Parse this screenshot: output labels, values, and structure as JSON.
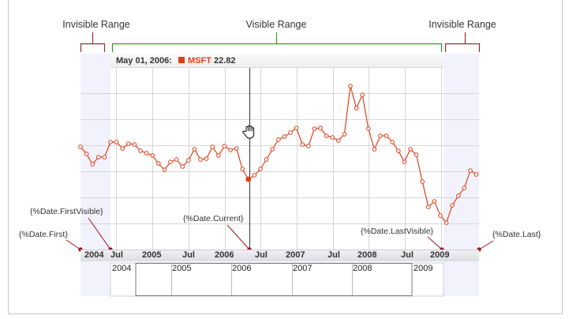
{
  "ranges": {
    "left_invisible": "Invisible Range",
    "visible": "Visible Range",
    "right_invisible": "Invisible Range"
  },
  "tooltip": {
    "date": "May 01, 2006:",
    "series": "MSFT",
    "value": "22.82"
  },
  "axis_labels": [
    "2004",
    "Jul",
    "2005",
    "Jul",
    "2006",
    "Jul",
    "2007",
    "Jul",
    "2008",
    "Jul",
    "2009"
  ],
  "navigator_labels": [
    "2004",
    "2005",
    "2006",
    "2007",
    "2008",
    "2009"
  ],
  "annotations": {
    "first": "{%Date.First}",
    "first_visible": "{%Date.FirstVisible}",
    "current": "{%Date.Current}",
    "last_visible": "{%Date.LastVisible}",
    "last": "{%Date.Last}"
  },
  "colors": {
    "series": "#e0401a",
    "navigator": "#2a6fd6",
    "bracket_invisible": "#a0282c",
    "bracket_visible": "#2a9a2a"
  },
  "chart_data": {
    "type": "line",
    "series": [
      {
        "name": "MSFT",
        "values": [
          27.38,
          26.38,
          24.93,
          25.93,
          25.93,
          28.04,
          28.04,
          27.15,
          27.82,
          27.71,
          26.82,
          26.49,
          26.15,
          25.04,
          24.15,
          25.26,
          25.6,
          24.6,
          25.49,
          27.04,
          25.6,
          25.71,
          27.38,
          26.15,
          27.49,
          26.93,
          27.15,
          24.26,
          22.82,
          23.38,
          24.26,
          25.6,
          27.04,
          28.38,
          28.82,
          29.38,
          30.04,
          27.71,
          27.49,
          29.93,
          30.04,
          28.93,
          28.71,
          28.26,
          29.15,
          35.93,
          32.82,
          34.71,
          29.93,
          27.04,
          28.93,
          28.93,
          28.04,
          26.82,
          25.26,
          27.04,
          26.26,
          22.49,
          18.93,
          19.71,
          17.71,
          16.71,
          19.15,
          20.49,
          21.6,
          24.04,
          23.49
        ]
      }
    ],
    "x_start": "Jan 2004",
    "x_interval": "month",
    "current_index": 28
  }
}
